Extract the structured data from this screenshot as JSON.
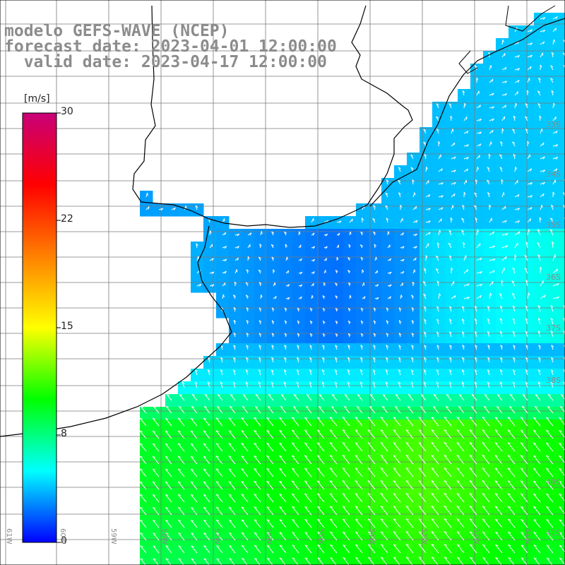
{
  "header": {
    "model": "modelo GEFS-WAVE (NCEP)",
    "forecast": "forecast date: 2023-04-01 12:00:00",
    "valid": "  valid date: 2023-04-17 12:00:00"
  },
  "colorbar": {
    "unit": "[m/s]",
    "ticks": [
      "30",
      "22",
      "15",
      "8",
      "0"
    ],
    "stops": [
      "#0000ff",
      "#00ffff",
      "#00ff00",
      "#ffff00",
      "#ff8000",
      "#ff0000",
      "#c80078"
    ]
  },
  "lat_labels": [
    "33S",
    "34S",
    "35S",
    "36S",
    "37S",
    "38S",
    "40S",
    "41S"
  ],
  "lon_labels": [
    "61W",
    "60W",
    "59W",
    "58W",
    "57W",
    "56W",
    "55W",
    "54W",
    "53W",
    "52W",
    "51W"
  ],
  "chart_data": {
    "type": "heatmap",
    "variable": "wind speed",
    "unit": "m/s",
    "colorscale_range": [
      0,
      30
    ],
    "field_description": {
      "north_bay": "approx 2-4",
      "central_ocean": "approx 3-6",
      "southern_belt": "approx 8-12"
    }
  }
}
